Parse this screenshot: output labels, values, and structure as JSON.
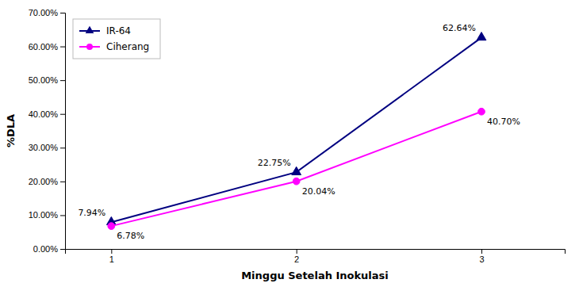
{
  "chart_data": {
    "type": "line",
    "x": [
      1,
      2,
      3
    ],
    "xlim": [
      0.75,
      3.45
    ],
    "xticks": [
      1,
      2,
      3
    ],
    "ylim": [
      0,
      70
    ],
    "yticks": [
      {
        "value": 0,
        "label": "0.00%"
      },
      {
        "value": 10,
        "label": "10.00%"
      },
      {
        "value": 20,
        "label": "20.00%"
      },
      {
        "value": 30,
        "label": "30.00%"
      },
      {
        "value": 40,
        "label": "40.00%"
      },
      {
        "value": 50,
        "label": "50.00%"
      },
      {
        "value": 60,
        "label": "60.00%"
      },
      {
        "value": 70,
        "label": "70.00%"
      }
    ],
    "xlabel": "Minggu Setelah Inokulasi",
    "ylabel": "%DLA",
    "series": [
      {
        "name": "IR-64",
        "color": "#000080",
        "marker": "triangle",
        "values": [
          7.94,
          22.75,
          62.64
        ],
        "value_labels": [
          "7.94%",
          "22.75%",
          "62.64%"
        ]
      },
      {
        "name": "Ciherang",
        "color": "#FF00FF",
        "marker": "circle",
        "values": [
          6.78,
          20.04,
          40.7
        ],
        "value_labels": [
          "6.78%",
          "20.04%",
          "40.70%"
        ]
      }
    ],
    "data_labels": true,
    "legend": "upper left",
    "grid": false
  }
}
